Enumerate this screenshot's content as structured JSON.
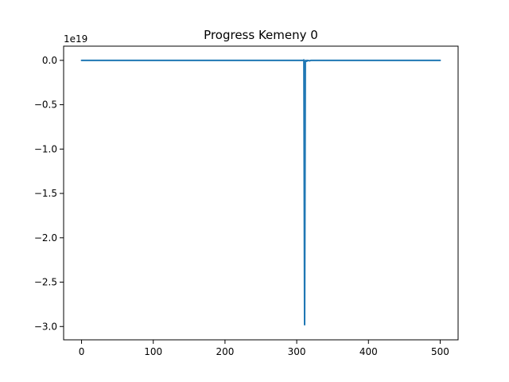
{
  "chart_data": {
    "type": "line",
    "title": "Progress Kemeny 0",
    "xlabel": "",
    "ylabel": "",
    "offset_text": "1e19",
    "xlim": [
      -25,
      525
    ],
    "ylim": [
      -3.15,
      0.16
    ],
    "x_ticks": [
      0,
      100,
      200,
      300,
      400,
      500
    ],
    "x_tick_labels": [
      "0",
      "100",
      "200",
      "300",
      "400",
      "500"
    ],
    "y_ticks": [
      0.0,
      -0.5,
      -1.0,
      -1.5,
      -2.0,
      -2.5,
      -3.0
    ],
    "y_tick_labels": [
      "0.0",
      "−0.5",
      "−1.0",
      "−1.5",
      "−2.0",
      "−2.5",
      "−3.0"
    ],
    "grid": false,
    "series": [
      {
        "name": "progress",
        "color": "#1f77b4",
        "x": [
          0,
          100,
          200,
          300,
          309,
          310,
          311,
          312,
          313,
          314,
          315,
          318,
          320,
          400,
          500
        ],
        "values": [
          0,
          0,
          0,
          0,
          0,
          0.005,
          -2.98,
          -0.005,
          0,
          -0.01,
          0,
          -0.005,
          0,
          0,
          0
        ]
      }
    ]
  }
}
